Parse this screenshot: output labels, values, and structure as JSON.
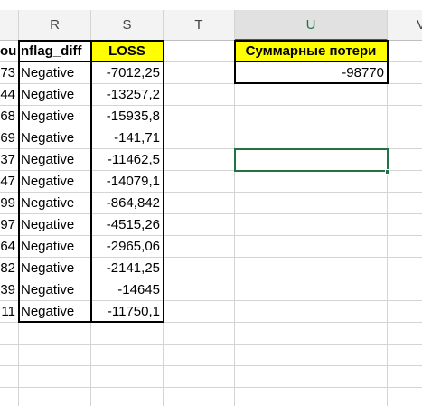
{
  "column_headers": [
    "R",
    "S",
    "T",
    "U",
    "V"
  ],
  "selected_column": "U",
  "header_row": {
    "q_partial": "ou",
    "r": "nflag_diff",
    "s": "LOSS",
    "u": "Суммарные потери"
  },
  "summary_value": "-98770",
  "rows": [
    {
      "q": "73",
      "r": "Negative",
      "s": "-7012,25"
    },
    {
      "q": "44",
      "r": "Negative",
      "s": "-13257,2"
    },
    {
      "q": "68",
      "r": "Negative",
      "s": "-15935,8"
    },
    {
      "q": "69",
      "r": "Negative",
      "s": "-141,71"
    },
    {
      "q": "37",
      "r": "Negative",
      "s": "-11462,5"
    },
    {
      "q": "47",
      "r": "Negative",
      "s": "-14079,1"
    },
    {
      "q": "99",
      "r": "Negative",
      "s": "-864,842"
    },
    {
      "q": "97",
      "r": "Negative",
      "s": "-4515,26"
    },
    {
      "q": "64",
      "r": "Negative",
      "s": "-2965,06"
    },
    {
      "q": "82",
      "r": "Negative",
      "s": "-2141,25"
    },
    {
      "q": "39",
      "r": "Negative",
      "s": "-14645"
    },
    {
      "q": "11",
      "r": "Negative",
      "s": "-11750,1"
    }
  ],
  "colors": {
    "header_fill": "#ffff00",
    "selection": "#217346",
    "grid": "#d4d4d4"
  }
}
